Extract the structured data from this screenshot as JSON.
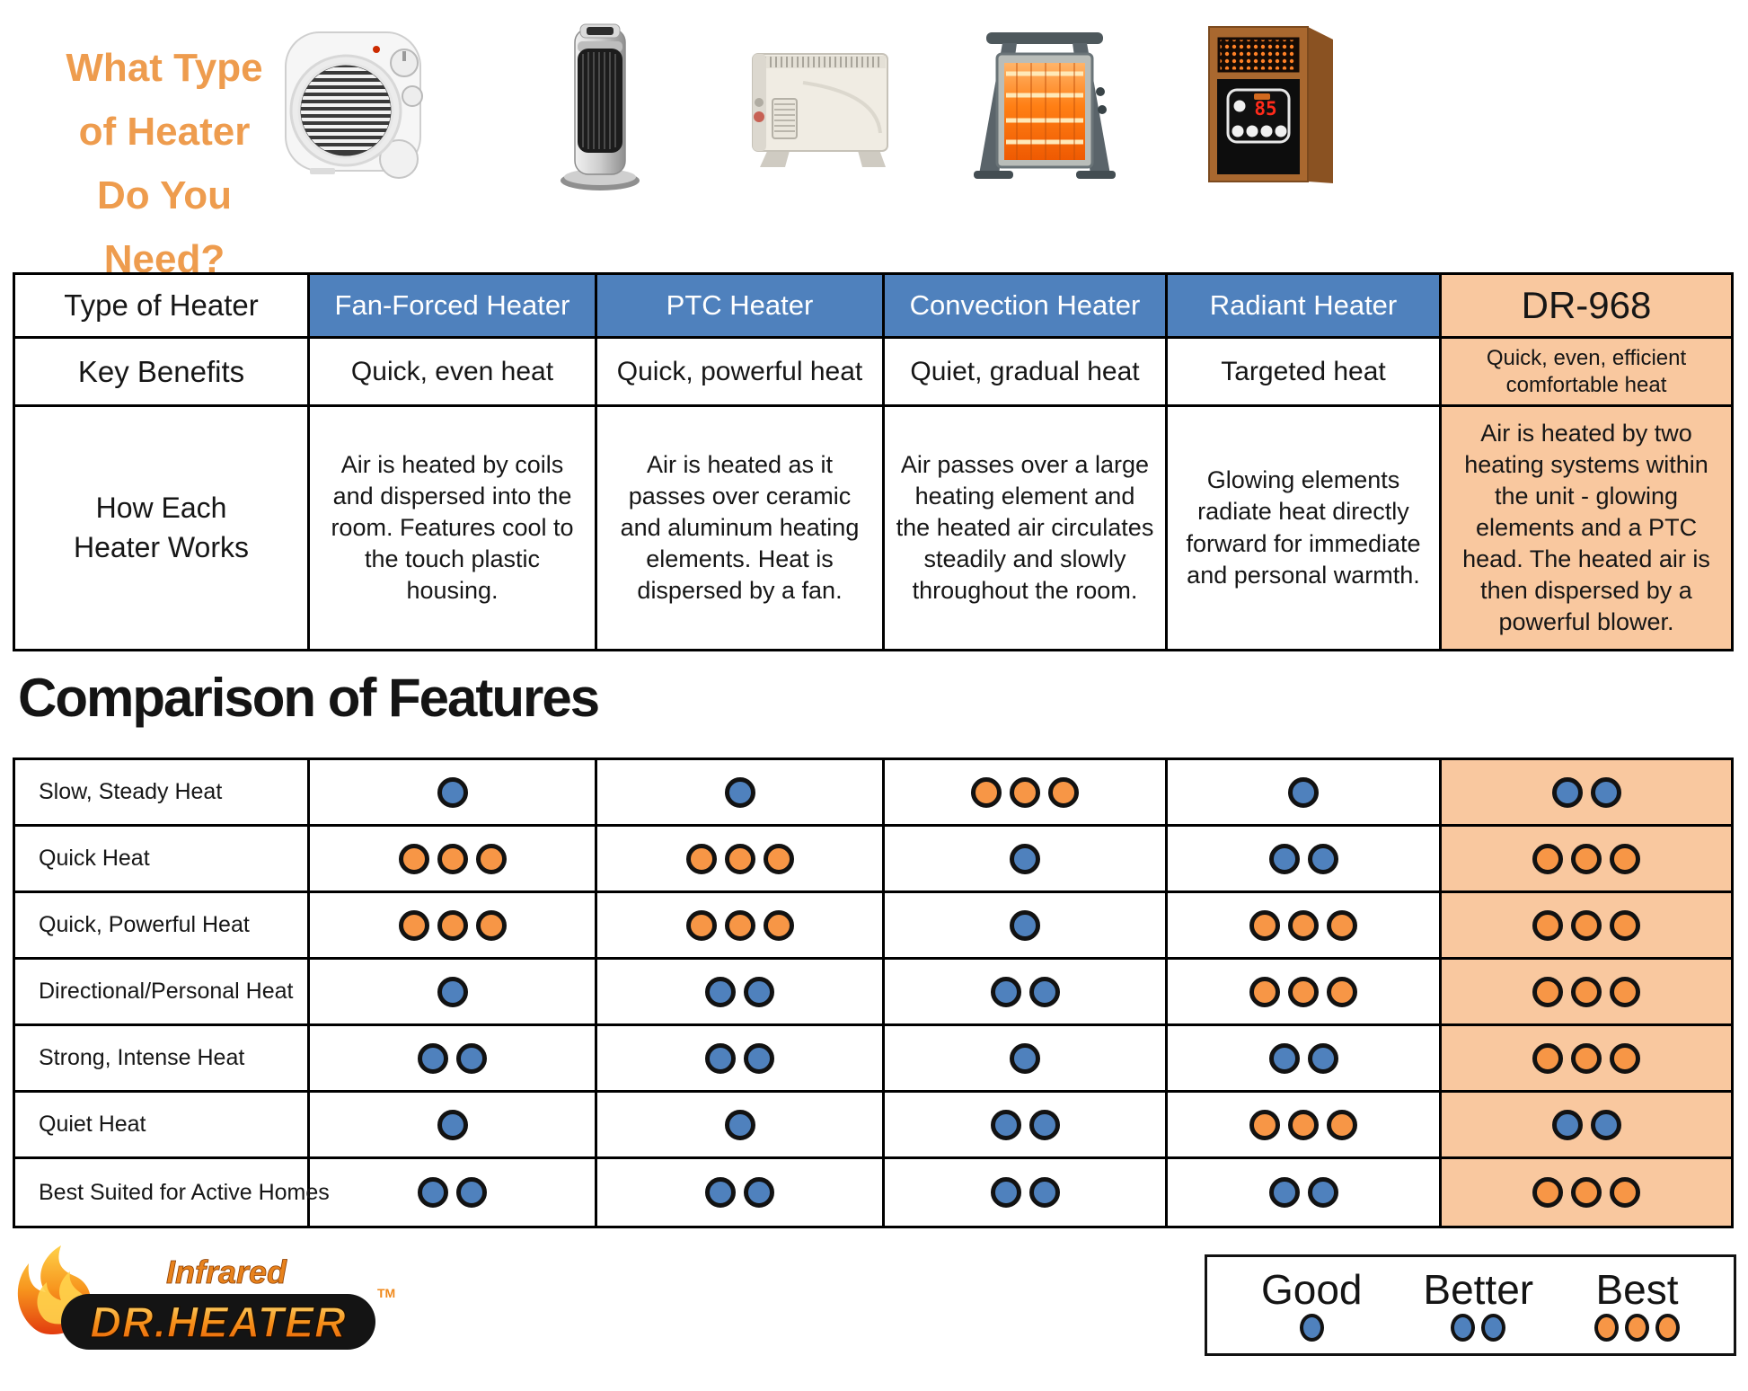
{
  "title": {
    "line1": "What Type",
    "line2": "of Heater",
    "line3": "Do You Need?"
  },
  "heaters": {
    "images": [
      "Fan-forced heater",
      "PTC tower heater",
      "Convection heater",
      "Radiant heater",
      "DR-968 infrared heater"
    ],
    "dr968_display": "85"
  },
  "table1": {
    "col_headers": [
      "Type of Heater",
      "Fan-Forced Heater",
      "PTC Heater",
      "Convection Heater",
      "Radiant Heater",
      "DR-968"
    ],
    "row_labels": [
      "Key Benefits",
      "How Each Heater Works"
    ],
    "key_benefits": [
      "Quick, even heat",
      "Quick, powerful heat",
      "Quiet, gradual heat",
      "Targeted heat",
      "Quick, even, efficient comfortable heat"
    ],
    "how_it_works": [
      "Air is heated by coils and dispersed into the room. Features cool to the touch plastic housing.",
      "Air is heated as it passes over ceramic and aluminum heating elements. Heat is dispersed by a fan.",
      "Air passes over a large heating element and the heated air circulates steadily and slowly throughout the room.",
      "Glowing elements radiate heat directly forward for immediate and personal warmth.",
      "Air is heated by two heating systems within the unit - glowing elements and a PTC head. The heated air is then dispersed by a powerful blower."
    ]
  },
  "features": {
    "heading": "Comparison of Features",
    "columns": [
      "Fan-Forced Heater",
      "PTC Heater",
      "Convection Heater",
      "Radiant Heater",
      "DR-968"
    ],
    "rows": [
      {
        "label": "Slow, Steady Heat",
        "cells": [
          {
            "count": 1,
            "color": "blue"
          },
          {
            "count": 1,
            "color": "blue"
          },
          {
            "count": 3,
            "color": "orange"
          },
          {
            "count": 1,
            "color": "blue"
          },
          {
            "count": 2,
            "color": "blue"
          }
        ]
      },
      {
        "label": "Quick Heat",
        "cells": [
          {
            "count": 3,
            "color": "orange"
          },
          {
            "count": 3,
            "color": "orange"
          },
          {
            "count": 1,
            "color": "blue"
          },
          {
            "count": 2,
            "color": "blue"
          },
          {
            "count": 3,
            "color": "orange"
          }
        ]
      },
      {
        "label": "Quick, Powerful Heat",
        "cells": [
          {
            "count": 3,
            "color": "orange"
          },
          {
            "count": 3,
            "color": "orange"
          },
          {
            "count": 1,
            "color": "blue"
          },
          {
            "count": 3,
            "color": "orange"
          },
          {
            "count": 3,
            "color": "orange"
          }
        ]
      },
      {
        "label": "Directional/Personal Heat",
        "cells": [
          {
            "count": 1,
            "color": "blue"
          },
          {
            "count": 2,
            "color": "blue"
          },
          {
            "count": 2,
            "color": "blue"
          },
          {
            "count": 3,
            "color": "orange"
          },
          {
            "count": 3,
            "color": "orange"
          }
        ]
      },
      {
        "label": "Strong, Intense Heat",
        "cells": [
          {
            "count": 2,
            "color": "blue"
          },
          {
            "count": 2,
            "color": "blue"
          },
          {
            "count": 1,
            "color": "blue"
          },
          {
            "count": 2,
            "color": "blue"
          },
          {
            "count": 3,
            "color": "orange"
          }
        ]
      },
      {
        "label": "Quiet Heat",
        "cells": [
          {
            "count": 1,
            "color": "blue"
          },
          {
            "count": 1,
            "color": "blue"
          },
          {
            "count": 2,
            "color": "blue"
          },
          {
            "count": 3,
            "color": "orange"
          },
          {
            "count": 2,
            "color": "blue"
          }
        ]
      },
      {
        "label": "Best Suited for Active Homes",
        "cells": [
          {
            "count": 2,
            "color": "blue"
          },
          {
            "count": 2,
            "color": "blue"
          },
          {
            "count": 2,
            "color": "blue"
          },
          {
            "count": 2,
            "color": "blue"
          },
          {
            "count": 3,
            "color": "orange"
          }
        ]
      }
    ]
  },
  "legend": {
    "items": [
      {
        "label": "Good",
        "count": 1,
        "color": "blue"
      },
      {
        "label": "Better",
        "count": 2,
        "color": "blue"
      },
      {
        "label": "Best",
        "count": 3,
        "color": "orange"
      }
    ]
  },
  "logo": {
    "top": "Infrared",
    "main": "DR.HEATER",
    "tm": "TM"
  },
  "colors": {
    "header_blue": "#4f81bd",
    "accent_peach": "#f9c89f",
    "dot_blue": "#4f81bd",
    "dot_orange": "#f79646",
    "title_orange": "#ee9c4e"
  }
}
